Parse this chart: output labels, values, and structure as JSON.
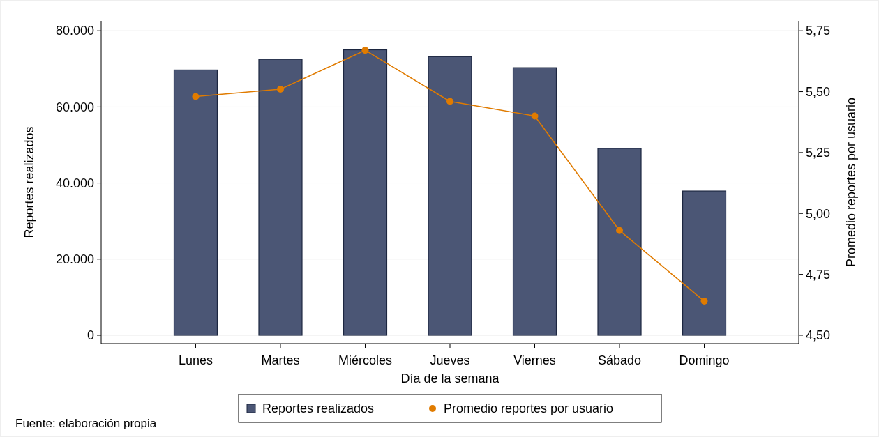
{
  "chart_data": {
    "type": "bar",
    "xlabel": "Día de la semana",
    "ylabel": "Reportes realizados",
    "y2label": "Promedio reportes por usuario",
    "categories": [
      "Lunes",
      "Martes",
      "Miércoles",
      "Jueves",
      "Viernes",
      "Sábado",
      "Domingo"
    ],
    "series": [
      {
        "name": "Reportes realizados",
        "color": "#4b5675",
        "values": [
          69700,
          72500,
          75000,
          73200,
          70300,
          49100,
          37900
        ]
      },
      {
        "name": "Promedio reportes por usuario",
        "type": "line",
        "axis": "y2",
        "color": "#e07b00",
        "values": [
          5.48,
          5.51,
          5.67,
          5.46,
          5.4,
          4.93,
          4.64
        ]
      }
    ],
    "ylim": [
      -2200,
      82600
    ],
    "yticks": [
      0,
      {
        "value": 20000,
        "label": "20.000"
      },
      {
        "value": 40000,
        "label": "40.000"
      },
      {
        "value": 60000,
        "label": "60.000"
      },
      {
        "value": 80000,
        "label": "80.000"
      }
    ],
    "y2lim": [
      4.4656,
      5.7906
    ],
    "y2ticks": [
      {
        "value": 4.5,
        "label": "4,50"
      },
      {
        "value": 4.75,
        "label": "4,75"
      },
      {
        "value": 5,
        "label": "5,00"
      },
      {
        "value": 5.25,
        "label": "5,25"
      },
      {
        "value": 5.5,
        "label": "5,50"
      },
      {
        "value": 5.75,
        "label": "5,75"
      }
    ],
    "grid": "y",
    "legend": "bottom",
    "marker": "circle",
    "annotations": [
      "Fuente: elaboración propia"
    ]
  }
}
